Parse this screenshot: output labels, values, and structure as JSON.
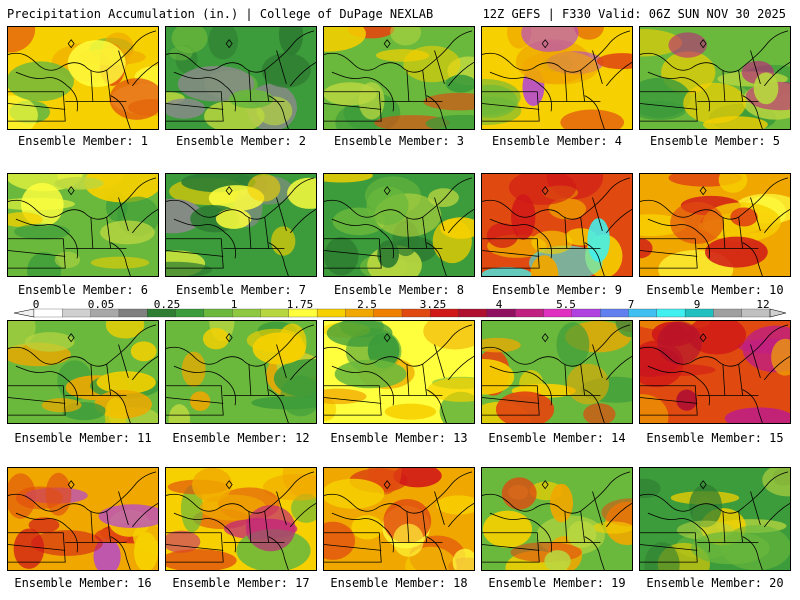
{
  "header": {
    "title_left": "Precipitation Accumulation (in.) | College of DuPage NEXLAB",
    "title_right": "12Z GEFS | F330 Valid: 06Z SUN NOV 30 2025"
  },
  "ensemble_label_prefix": "Ensemble Member:",
  "members": [
    {
      "id": 1,
      "caption": "Ensemble Member: 1",
      "palette": [
        "#f6d000",
        "#f0a800",
        "#ffff3e",
        "#6ab83c",
        "#e04a10"
      ]
    },
    {
      "id": 2,
      "caption": "Ensemble Member: 2",
      "palette": [
        "#3c9b3a",
        "#2e7d32",
        "#6ab83c",
        "#8a8a8a",
        "#b8d640"
      ]
    },
    {
      "id": 3,
      "caption": "Ensemble Member: 3",
      "palette": [
        "#6ab83c",
        "#3c9b3a",
        "#b8d640",
        "#f6d000",
        "#e04a10"
      ]
    },
    {
      "id": 4,
      "caption": "Ensemble Member: 4",
      "palette": [
        "#f6d000",
        "#6ab83c",
        "#f0a800",
        "#e04a10",
        "#b040e0"
      ]
    },
    {
      "id": 5,
      "caption": "Ensemble Member: 5",
      "palette": [
        "#6ab83c",
        "#3c9b3a",
        "#f6d000",
        "#b8d640",
        "#c02080"
      ]
    },
    {
      "id": 6,
      "caption": "Ensemble Member: 6",
      "palette": [
        "#6ab83c",
        "#3c9b3a",
        "#b8d640",
        "#f6d000",
        "#ffff3e"
      ]
    },
    {
      "id": 7,
      "caption": "Ensemble Member: 7",
      "palette": [
        "#3c9b3a",
        "#2e7d32",
        "#ffff3e",
        "#f6d000",
        "#8a8a8a"
      ]
    },
    {
      "id": 8,
      "caption": "Ensemble Member: 8",
      "palette": [
        "#3c9b3a",
        "#6ab83c",
        "#2e7d32",
        "#b8d640",
        "#f6d000"
      ]
    },
    {
      "id": 9,
      "caption": "Ensemble Member: 9",
      "palette": [
        "#e04a10",
        "#f0a800",
        "#d01818",
        "#f6d000",
        "#40f0f0"
      ]
    },
    {
      "id": 10,
      "caption": "Ensemble Member: 10",
      "palette": [
        "#f0a800",
        "#f6d000",
        "#e04a10",
        "#ffff3e",
        "#d01818"
      ]
    },
    {
      "id": 11,
      "caption": "Ensemble Member: 11",
      "palette": [
        "#6ab83c",
        "#f6d000",
        "#f0a800",
        "#b8d640",
        "#3c9b3a"
      ]
    },
    {
      "id": 12,
      "caption": "Ensemble Member: 12",
      "palette": [
        "#6ab83c",
        "#3c9b3a",
        "#f6d000",
        "#f0a800",
        "#b8d640"
      ]
    },
    {
      "id": 13,
      "caption": "Ensemble Member: 13",
      "palette": [
        "#ffff3e",
        "#f6d000",
        "#6ab83c",
        "#f0a800",
        "#3c9b3a"
      ]
    },
    {
      "id": 14,
      "caption": "Ensemble Member: 14",
      "palette": [
        "#6ab83c",
        "#f6d000",
        "#e04a10",
        "#3c9b3a",
        "#f0a800"
      ]
    },
    {
      "id": 15,
      "caption": "Ensemble Member: 15",
      "palette": [
        "#e04a10",
        "#d01818",
        "#b01030",
        "#c02080",
        "#f0a800"
      ]
    },
    {
      "id": 16,
      "caption": "Ensemble Member: 16",
      "palette": [
        "#f0a800",
        "#e04a10",
        "#d01818",
        "#f6d000",
        "#b040e0"
      ]
    },
    {
      "id": 17,
      "caption": "Ensemble Member: 17",
      "palette": [
        "#f6d000",
        "#f0a800",
        "#e04a10",
        "#6ab83c",
        "#c02080"
      ]
    },
    {
      "id": 18,
      "caption": "Ensemble Member: 18",
      "palette": [
        "#f0a800",
        "#e04a10",
        "#f6d000",
        "#d01818",
        "#ffff3e"
      ]
    },
    {
      "id": 19,
      "caption": "Ensemble Member: 19",
      "palette": [
        "#6ab83c",
        "#b8d640",
        "#f6d000",
        "#f0a800",
        "#e04a10"
      ]
    },
    {
      "id": 20,
      "caption": "Ensemble Member: 20",
      "palette": [
        "#3c9b3a",
        "#6ab83c",
        "#2e7d32",
        "#b8d640",
        "#f6d000"
      ]
    }
  ],
  "colorbar": {
    "tick_labels": [
      "0",
      "0.05",
      "0.25",
      "1",
      "1.75",
      "2.5",
      "3.25",
      "4",
      "5.5",
      "7",
      "9",
      "12"
    ],
    "colors": [
      "#ffffff",
      "#d0d0d0",
      "#a8a8a8",
      "#808080",
      "#2e7d32",
      "#3c9b3a",
      "#6ab83c",
      "#8ec840",
      "#b8d640",
      "#ffff3e",
      "#f6d000",
      "#f0a800",
      "#f08000",
      "#e04a10",
      "#d01818",
      "#b01030",
      "#901060",
      "#c02080",
      "#e030c0",
      "#b040e0",
      "#6080f0",
      "#40c0f0",
      "#40f0f0",
      "#20c0c0",
      "#a0a0a0",
      "#c0c0c0"
    ]
  }
}
